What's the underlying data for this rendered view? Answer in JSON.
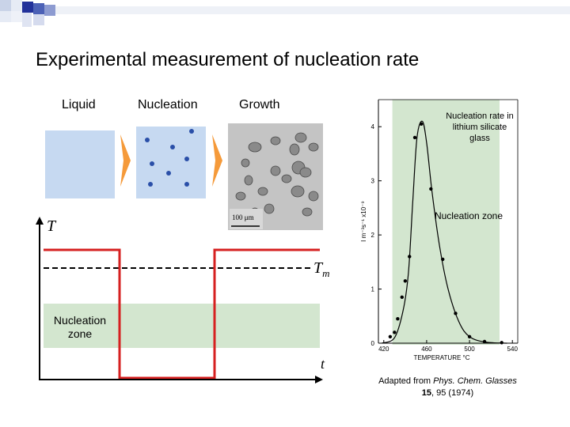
{
  "slide": {
    "title": "Experimental measurement of nucleation rate",
    "stages": [
      "Liquid",
      "Nucleation",
      "Growth"
    ],
    "scale_bar": "100 μm"
  },
  "diagram": {
    "axis_y": "T",
    "axis_x": "t",
    "melting_label_main": "T",
    "melting_label_sub": "m",
    "zone_label": "Nucleation zone",
    "colors": {
      "profile": "#d62020",
      "zone": "#d3e6cf",
      "box": "#c6d9f1",
      "arrow": "#f59a3a",
      "nuclei": "#2a4fa8"
    }
  },
  "chart_data": {
    "type": "scatter",
    "title": "Nucleation rate in lithium silicate glass",
    "zone_label": "Nucleation zone",
    "xlabel": "TEMPERATURE °C",
    "ylabel": "I m⁻³s⁻¹ x10⁻⁹",
    "xlim": [
      415,
      545
    ],
    "ylim": [
      0,
      4.5
    ],
    "xticks": [
      420,
      460,
      500,
      540
    ],
    "yticks": [
      0,
      1,
      2,
      3,
      4
    ],
    "zone_range": [
      428,
      528
    ],
    "points": [
      {
        "x": 426,
        "y": 0.12
      },
      {
        "x": 430,
        "y": 0.2
      },
      {
        "x": 433,
        "y": 0.45
      },
      {
        "x": 437,
        "y": 0.85
      },
      {
        "x": 440,
        "y": 1.15
      },
      {
        "x": 444,
        "y": 1.6
      },
      {
        "x": 449,
        "y": 3.8
      },
      {
        "x": 455,
        "y": 4.05
      },
      {
        "x": 464,
        "y": 2.85
      },
      {
        "x": 475,
        "y": 1.55
      },
      {
        "x": 487,
        "y": 0.55
      },
      {
        "x": 500,
        "y": 0.12
      },
      {
        "x": 514,
        "y": 0.03
      },
      {
        "x": 530,
        "y": 0.01
      }
    ],
    "curve": [
      {
        "x": 418,
        "y": 0.0
      },
      {
        "x": 430,
        "y": 0.1
      },
      {
        "x": 438,
        "y": 0.6
      },
      {
        "x": 443,
        "y": 1.3
      },
      {
        "x": 447,
        "y": 2.6
      },
      {
        "x": 451,
        "y": 3.8
      },
      {
        "x": 456,
        "y": 4.1
      },
      {
        "x": 460,
        "y": 3.7
      },
      {
        "x": 465,
        "y": 2.8
      },
      {
        "x": 472,
        "y": 1.8
      },
      {
        "x": 480,
        "y": 1.0
      },
      {
        "x": 490,
        "y": 0.4
      },
      {
        "x": 500,
        "y": 0.12
      },
      {
        "x": 515,
        "y": 0.02
      },
      {
        "x": 535,
        "y": 0.0
      }
    ]
  },
  "caption": {
    "line1_prefix": "Adapted from ",
    "line1_italic": "Phys. Chem. Glasses",
    "line2_bold": "15",
    "line2_rest": ", 95 (1974)"
  }
}
